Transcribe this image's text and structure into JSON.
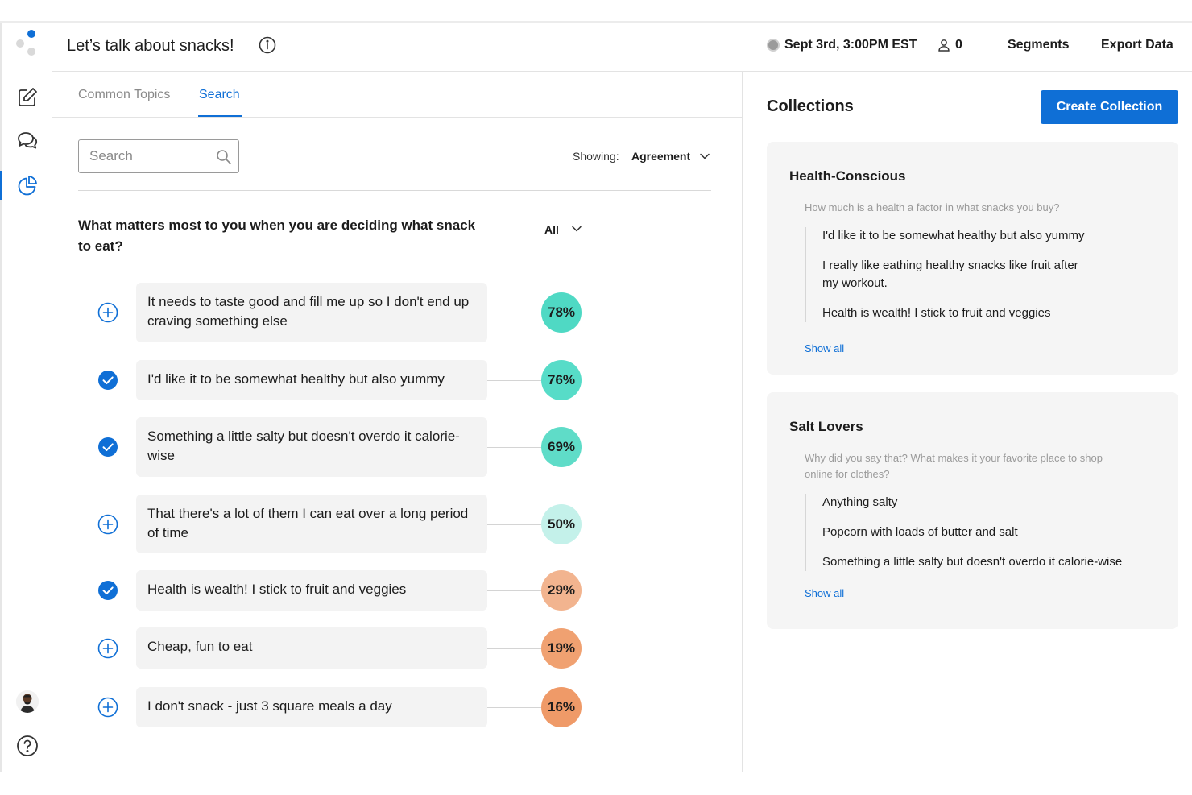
{
  "header": {
    "title": "Let’s talk about snacks!",
    "session_date": "Sept 3rd, 3:00PM EST",
    "participants_count": "0",
    "segments_label": "Segments",
    "export_label": "Export Data"
  },
  "tabs": [
    {
      "label": "Common Topics",
      "active": false
    },
    {
      "label": "Search",
      "active": true
    }
  ],
  "search": {
    "placeholder": "Search",
    "value": ""
  },
  "showing": {
    "label": "Showing:",
    "value": "Agreement"
  },
  "question": {
    "text": "What matters most to you when you are deciding what snack to eat?",
    "filter_value": "All"
  },
  "responses": [
    {
      "text": "It needs to taste good and fill me up so I don't end up craving something else",
      "percent": "78%",
      "added": false,
      "color": "#4fd9c4"
    },
    {
      "text": "I'd like it to be somewhat healthy but also yummy",
      "percent": "76%",
      "added": true,
      "color": "#57dcc8"
    },
    {
      "text": "Something a little salty but doesn't overdo it calorie-wise",
      "percent": "69%",
      "added": true,
      "color": "#5fdcc8"
    },
    {
      "text": "That there's a lot of them I can eat over a long period of time",
      "percent": "50%",
      "added": false,
      "color": "#c4f1ea"
    },
    {
      "text": "Health is wealth! I stick to fruit and veggies",
      "percent": "29%",
      "added": true,
      "color": "#f2b48f"
    },
    {
      "text": "Cheap, fun to eat",
      "percent": "19%",
      "added": false,
      "color": "#f0a171"
    },
    {
      "text": "I don't snack - just 3 square meals a day",
      "percent": "16%",
      "added": false,
      "color": "#ef9a68"
    }
  ],
  "collections": {
    "title": "Collections",
    "create_label": "Create Collection",
    "items": [
      {
        "name": "Health-Conscious",
        "question": "How much is a health a factor in what snacks you buy?",
        "quotes": [
          "I'd like it to be somewhat healthy but also yummy",
          "I really like eathing healthy snacks like fruit after my workout.",
          "Health is wealth! I stick to fruit and veggies"
        ],
        "show_all": "Show all"
      },
      {
        "name": "Salt Lovers",
        "question": "Why did you say that? What makes it your favorite place to shop online for clothes?",
        "quotes": [
          "Anything salty",
          "Popcorn with loads of butter and salt",
          "Something a little salty but doesn't overdo it calorie-wise"
        ],
        "show_all": "Show all"
      }
    ]
  },
  "colors": {
    "accent": "#0f6fd6",
    "card_bg": "#f3f3f3"
  }
}
